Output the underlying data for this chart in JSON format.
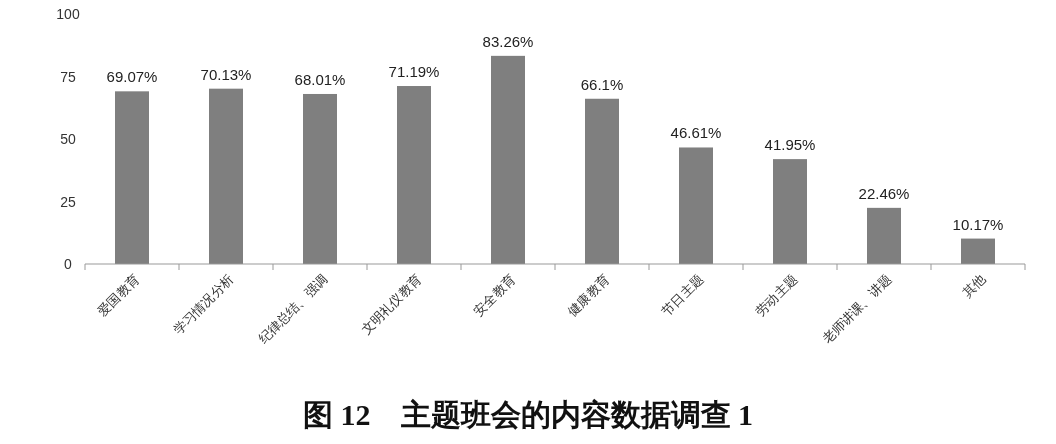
{
  "chart_data": {
    "type": "bar",
    "title": "图 12　主题班会的内容数据调查 1",
    "categories": [
      "爱国教育",
      "学习情况分析",
      "纪律总结、强调",
      "文明礼仪教育",
      "安全教育",
      "健康教育",
      "节日主题",
      "劳动主题",
      "老师讲课、讲题",
      "其他"
    ],
    "values": [
      69.07,
      70.13,
      68.01,
      71.19,
      83.26,
      66.1,
      46.61,
      41.95,
      22.46,
      10.17
    ],
    "value_labels": [
      "69.07%",
      "70.13%",
      "68.01%",
      "71.19%",
      "83.26%",
      "66.1%",
      "46.61%",
      "41.95%",
      "22.46%",
      "10.17%"
    ],
    "color": "#7f7f7f",
    "ylim": [
      0,
      100
    ],
    "yticks": [
      0,
      25,
      50,
      75,
      100
    ],
    "grid": false
  }
}
